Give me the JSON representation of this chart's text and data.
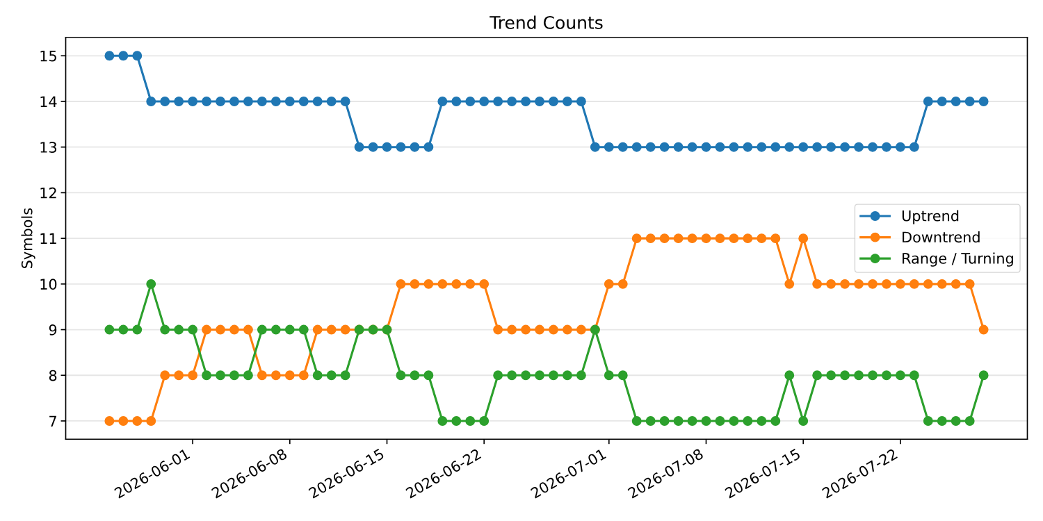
{
  "chart_data": {
    "type": "line",
    "title": "Trend Counts",
    "ylabel": "Symbols",
    "x": [
      "2026-05-26",
      "2026-05-27",
      "2026-05-28",
      "2026-05-29",
      "2026-05-30",
      "2026-05-31",
      "2026-06-01",
      "2026-06-02",
      "2026-06-03",
      "2026-06-04",
      "2026-06-05",
      "2026-06-06",
      "2026-06-07",
      "2026-06-08",
      "2026-06-09",
      "2026-06-10",
      "2026-06-11",
      "2026-06-12",
      "2026-06-13",
      "2026-06-14",
      "2026-06-15",
      "2026-06-16",
      "2026-06-17",
      "2026-06-18",
      "2026-06-19",
      "2026-06-20",
      "2026-06-21",
      "2026-06-22",
      "2026-06-23",
      "2026-06-24",
      "2026-06-25",
      "2026-06-26",
      "2026-06-27",
      "2026-06-28",
      "2026-06-29",
      "2026-06-30",
      "2026-07-01",
      "2026-07-02",
      "2026-07-03",
      "2026-07-04",
      "2026-07-05",
      "2026-07-06",
      "2026-07-07",
      "2026-07-08",
      "2026-07-09",
      "2026-07-10",
      "2026-07-11",
      "2026-07-12",
      "2026-07-13",
      "2026-07-14",
      "2026-07-15",
      "2026-07-16",
      "2026-07-17",
      "2026-07-18",
      "2026-07-19",
      "2026-07-20",
      "2026-07-21",
      "2026-07-22",
      "2026-07-23",
      "2026-07-24",
      "2026-07-25",
      "2026-07-26",
      "2026-07-27",
      "2026-07-28"
    ],
    "series": [
      {
        "name": "Uptrend",
        "color": "#1f77b4",
        "values": [
          15,
          15,
          15,
          14,
          14,
          14,
          14,
          14,
          14,
          14,
          14,
          14,
          14,
          14,
          14,
          14,
          14,
          14,
          13,
          13,
          13,
          13,
          13,
          13,
          14,
          14,
          14,
          14,
          14,
          14,
          14,
          14,
          14,
          14,
          14,
          13,
          13,
          13,
          13,
          13,
          13,
          13,
          13,
          13,
          13,
          13,
          13,
          13,
          13,
          13,
          13,
          13,
          13,
          13,
          13,
          13,
          13,
          13,
          13,
          14,
          14,
          14,
          14,
          14
        ]
      },
      {
        "name": "Downtrend",
        "color": "#ff7f0e",
        "values": [
          7,
          7,
          7,
          7,
          8,
          8,
          8,
          9,
          9,
          9,
          9,
          8,
          8,
          8,
          8,
          9,
          9,
          9,
          9,
          9,
          9,
          10,
          10,
          10,
          10,
          10,
          10,
          10,
          9,
          9,
          9,
          9,
          9,
          9,
          9,
          9,
          10,
          10,
          11,
          11,
          11,
          11,
          11,
          11,
          11,
          11,
          11,
          11,
          11,
          10,
          11,
          10,
          10,
          10,
          10,
          10,
          10,
          10,
          10,
          10,
          10,
          10,
          10,
          9
        ]
      },
      {
        "name": "Range / Turning",
        "color": "#2ca02c",
        "values": [
          9,
          9,
          9,
          10,
          9,
          9,
          9,
          8,
          8,
          8,
          8,
          9,
          9,
          9,
          9,
          8,
          8,
          8,
          9,
          9,
          9,
          8,
          8,
          8,
          7,
          7,
          7,
          7,
          8,
          8,
          8,
          8,
          8,
          8,
          8,
          9,
          8,
          8,
          7,
          7,
          7,
          7,
          7,
          7,
          7,
          7,
          7,
          7,
          7,
          8,
          7,
          8,
          8,
          8,
          8,
          8,
          8,
          8,
          8,
          7,
          7,
          7,
          7,
          8
        ]
      }
    ],
    "xlim": [
      "2026-05-22T20:24",
      "2026-07-31T03:36"
    ],
    "xticks": [
      "2026-06-01",
      "2026-06-08",
      "2026-06-15",
      "2026-06-22",
      "2026-07-01",
      "2026-07-08",
      "2026-07-15",
      "2026-07-22"
    ],
    "ylim": [
      6.6,
      15.4
    ],
    "yticks": [
      7,
      8,
      9,
      10,
      11,
      12,
      13,
      14,
      15
    ],
    "grid": "y",
    "legend": "right",
    "marker": "circle",
    "line_style": "solid"
  }
}
